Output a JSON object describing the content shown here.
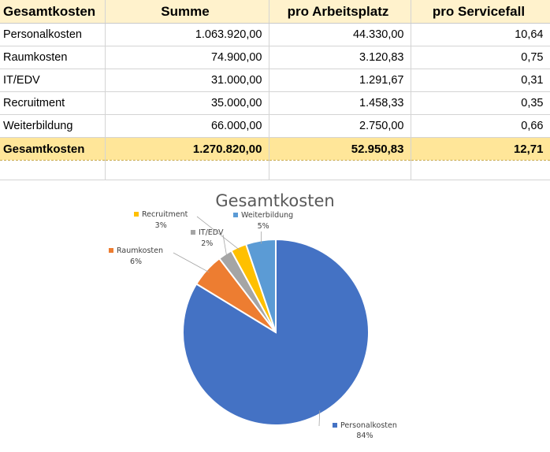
{
  "table": {
    "headers": [
      "Gesamtkosten",
      "Summe",
      "pro Arbeitsplatz",
      "pro Servicefall"
    ],
    "rows": [
      {
        "label": "Personalkosten",
        "summe": "1.063.920,00",
        "arbeitsplatz": "44.330,00",
        "servicefall": "10,64"
      },
      {
        "label": "Raumkosten",
        "summe": "74.900,00",
        "arbeitsplatz": "3.120,83",
        "servicefall": "0,75"
      },
      {
        "label": "IT/EDV",
        "summe": "31.000,00",
        "arbeitsplatz": "1.291,67",
        "servicefall": "0,31"
      },
      {
        "label": "Recruitment",
        "summe": "35.000,00",
        "arbeitsplatz": "1.458,33",
        "servicefall": "0,35"
      },
      {
        "label": "Weiterbildung",
        "summe": "66.000,00",
        "arbeitsplatz": "2.750,00",
        "servicefall": "0,66"
      }
    ],
    "total": {
      "label": "Gesamtkosten",
      "summe": "1.270.820,00",
      "arbeitsplatz": "52.950,83",
      "servicefall": "12,71"
    }
  },
  "chart_data": {
    "type": "pie",
    "title": "Gesamtkosten",
    "categories": [
      "Personalkosten",
      "Raumkosten",
      "IT/EDV",
      "Recruitment",
      "Weiterbildung"
    ],
    "values": [
      1063920,
      74900,
      31000,
      35000,
      66000
    ],
    "percent_labels": [
      "84%",
      "6%",
      "2%",
      "3%",
      "5%"
    ],
    "colors": [
      "#4472c4",
      "#ed7d31",
      "#a5a5a5",
      "#ffc000",
      "#5b9bd5"
    ],
    "legend": "none",
    "data_labels": "outside with leader lines"
  }
}
